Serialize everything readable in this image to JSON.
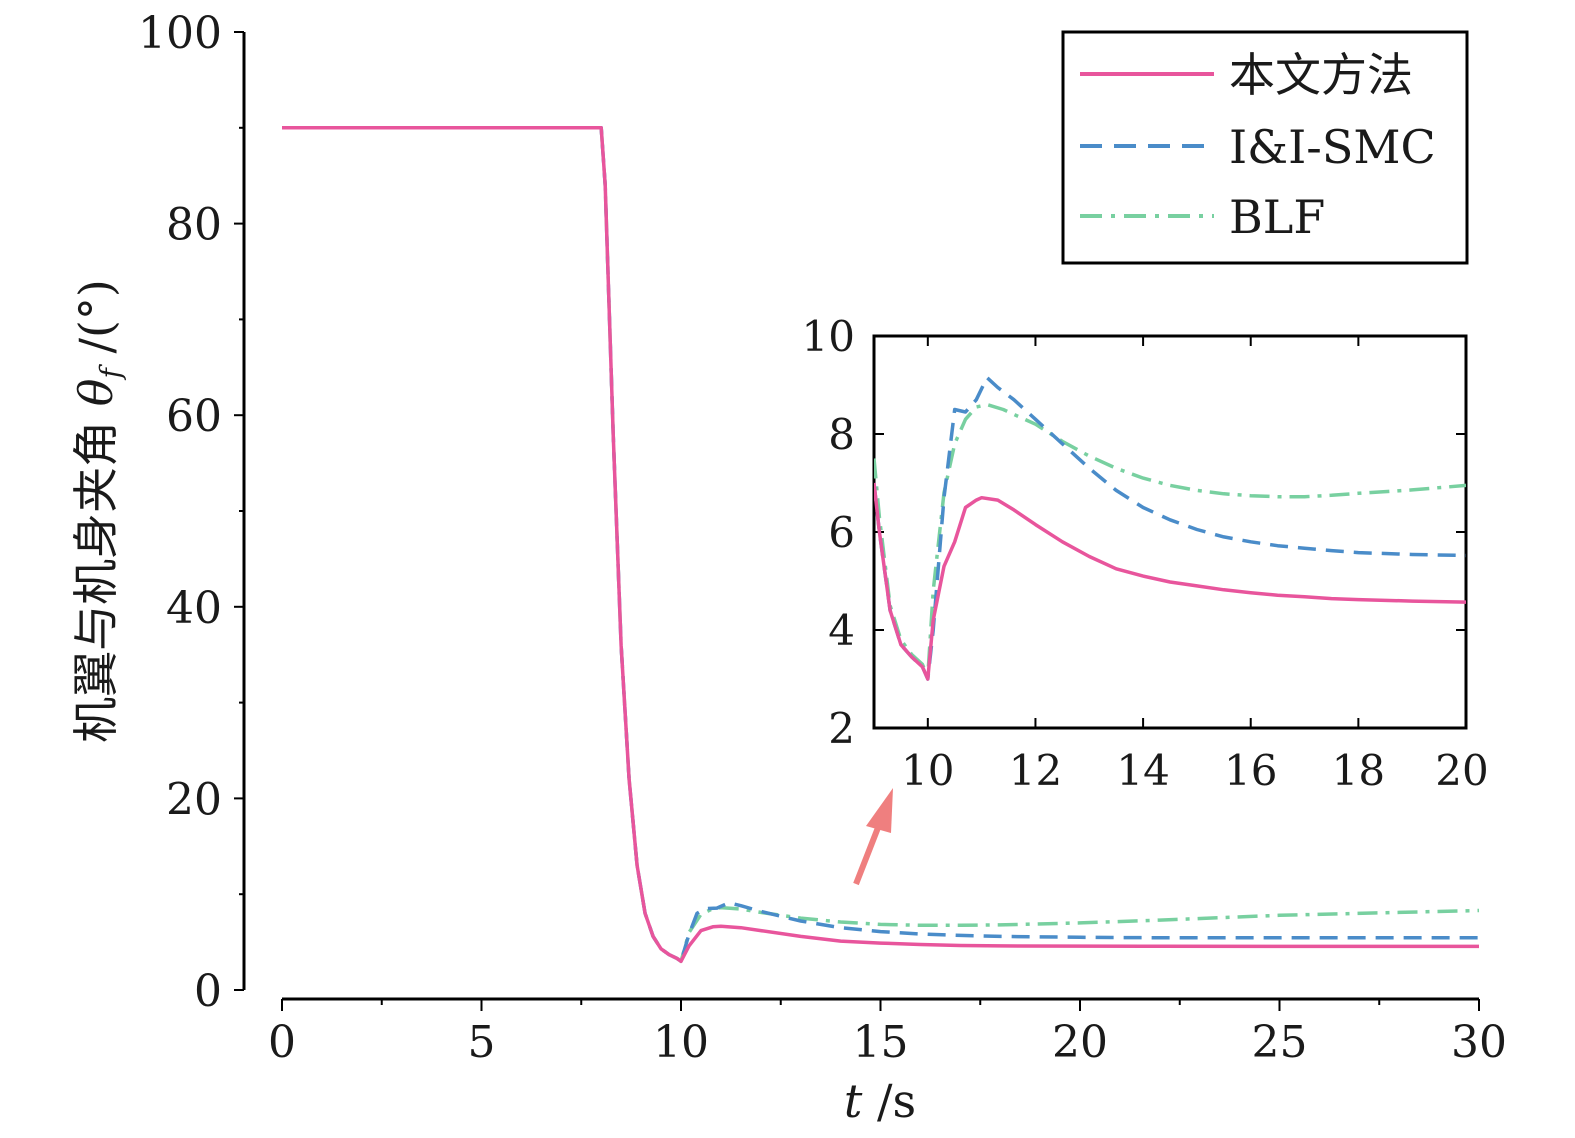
{
  "chart_data": [
    {
      "type": "line",
      "xlabel": "t /s",
      "ylabel": "机翼与机身夹角 θ_f /(°)",
      "ylabel_parts": {
        "prefix": "机翼与机身夹角 ",
        "symbol": "θ",
        "subscript": "f",
        "suffix": " /(°)"
      },
      "xlabel_parts": {
        "symbol": "t",
        "suffix": " /s"
      },
      "xlim": [
        0,
        30
      ],
      "ylim": [
        0,
        100
      ],
      "xticks": [
        0,
        5,
        10,
        15,
        20,
        25,
        30
      ],
      "yticks": [
        0,
        20,
        40,
        60,
        80,
        100
      ],
      "grid": false,
      "legend_position": "top-right",
      "series": [
        {
          "name": "本文方法",
          "color": "#e8559c",
          "style": "solid",
          "x": [
            0,
            8,
            8.1,
            8.3,
            8.5,
            8.7,
            8.9,
            9.1,
            9.3,
            9.5,
            9.7,
            9.9,
            10,
            10.2,
            10.5,
            10.8,
            11,
            11.5,
            12,
            13,
            14,
            15,
            16,
            17,
            18,
            20,
            22,
            25,
            28,
            30
          ],
          "y": [
            90,
            90,
            84,
            58,
            36,
            22,
            13,
            8,
            5.6,
            4.3,
            3.7,
            3.3,
            3.0,
            4.6,
            6.2,
            6.6,
            6.65,
            6.5,
            6.2,
            5.6,
            5.1,
            4.9,
            4.75,
            4.65,
            4.6,
            4.58,
            4.56,
            4.55,
            4.55,
            4.55
          ]
        },
        {
          "name": "I&I-SMC",
          "color": "#4a8cc9",
          "style": "dashed",
          "x": [
            0,
            8,
            8.1,
            8.3,
            8.5,
            8.7,
            8.9,
            9.1,
            9.3,
            9.5,
            9.7,
            9.9,
            10,
            10.2,
            10.4,
            10.6,
            10.9,
            11.2,
            11.5,
            12,
            13,
            14,
            15,
            16,
            17,
            18,
            20,
            22,
            25,
            28,
            30
          ],
          "y": [
            90,
            90,
            84,
            58,
            36,
            22,
            13,
            8,
            5.6,
            4.3,
            3.7,
            3.3,
            3.0,
            5.8,
            8.0,
            8.5,
            8.55,
            9.1,
            8.8,
            8.2,
            7.2,
            6.5,
            6.1,
            5.85,
            5.7,
            5.6,
            5.5,
            5.45,
            5.45,
            5.45,
            5.45
          ]
        },
        {
          "name": "BLF",
          "color": "#78d0a0",
          "style": "dashdot",
          "x": [
            0,
            8,
            8.1,
            8.3,
            8.5,
            8.7,
            8.9,
            9.1,
            9.3,
            9.5,
            9.7,
            9.9,
            10,
            10.2,
            10.5,
            10.8,
            11,
            11.5,
            12,
            13,
            14,
            15,
            16,
            17,
            18,
            20,
            22,
            25,
            28,
            30
          ],
          "y": [
            90,
            90,
            84,
            58,
            36,
            22,
            13,
            8,
            5.6,
            4.3,
            3.7,
            3.3,
            3.0,
            6.0,
            7.9,
            8.5,
            8.6,
            8.45,
            8.1,
            7.5,
            7.1,
            6.85,
            6.75,
            6.75,
            6.8,
            7.0,
            7.3,
            7.8,
            8.1,
            8.3
          ]
        }
      ]
    },
    {
      "type": "line",
      "role": "inset",
      "xlim": [
        9,
        20
      ],
      "ylim": [
        2,
        10
      ],
      "xticks": [
        10,
        12,
        14,
        16,
        18,
        20
      ],
      "yticks": [
        2,
        4,
        6,
        8,
        10
      ],
      "series": [
        {
          "name": "本文方法",
          "color": "#e8559c",
          "style": "solid",
          "x": [
            9,
            9.1,
            9.3,
            9.5,
            9.7,
            9.9,
            10,
            10.1,
            10.3,
            10.5,
            10.7,
            10.9,
            11,
            11.3,
            11.6,
            12,
            12.5,
            13,
            13.5,
            14,
            14.5,
            15,
            15.5,
            16,
            16.5,
            17,
            17.5,
            18,
            19,
            20
          ],
          "y": [
            7.0,
            6.0,
            4.4,
            3.7,
            3.45,
            3.25,
            3.0,
            4.2,
            5.3,
            5.8,
            6.5,
            6.65,
            6.7,
            6.65,
            6.45,
            6.15,
            5.8,
            5.5,
            5.25,
            5.1,
            4.98,
            4.9,
            4.82,
            4.76,
            4.71,
            4.68,
            4.64,
            4.62,
            4.59,
            4.57
          ]
        },
        {
          "name": "I&I-SMC",
          "color": "#4a8cc9",
          "style": "dashed",
          "x": [
            9,
            9.1,
            9.3,
            9.5,
            9.7,
            9.9,
            10,
            10.1,
            10.3,
            10.5,
            10.7,
            10.9,
            11.1,
            11.3,
            11.6,
            12,
            12.5,
            13,
            13.5,
            14,
            14.5,
            15,
            15.5,
            16,
            16.5,
            17,
            17.5,
            18,
            19,
            20
          ],
          "y": [
            7.0,
            6.0,
            4.4,
            3.7,
            3.45,
            3.25,
            3.0,
            4.0,
            6.7,
            8.5,
            8.45,
            8.7,
            9.15,
            8.95,
            8.7,
            8.3,
            7.8,
            7.3,
            6.85,
            6.5,
            6.25,
            6.05,
            5.9,
            5.8,
            5.72,
            5.67,
            5.62,
            5.58,
            5.54,
            5.52
          ]
        },
        {
          "name": "BLF",
          "color": "#78d0a0",
          "style": "dashdot",
          "x": [
            9,
            9.1,
            9.3,
            9.5,
            9.7,
            9.9,
            10,
            10.1,
            10.3,
            10.5,
            10.7,
            10.9,
            11.1,
            11.4,
            11.7,
            12,
            12.5,
            13,
            13.5,
            14,
            14.5,
            15,
            15.5,
            16,
            16.5,
            17,
            17.5,
            18,
            19,
            20
          ],
          "y": [
            7.5,
            6.3,
            4.5,
            3.8,
            3.5,
            3.3,
            3.05,
            4.8,
            6.8,
            7.8,
            8.3,
            8.55,
            8.6,
            8.5,
            8.35,
            8.2,
            7.85,
            7.55,
            7.3,
            7.1,
            6.95,
            6.85,
            6.78,
            6.74,
            6.72,
            6.72,
            6.75,
            6.79,
            6.86,
            6.95
          ]
        }
      ]
    }
  ]
}
